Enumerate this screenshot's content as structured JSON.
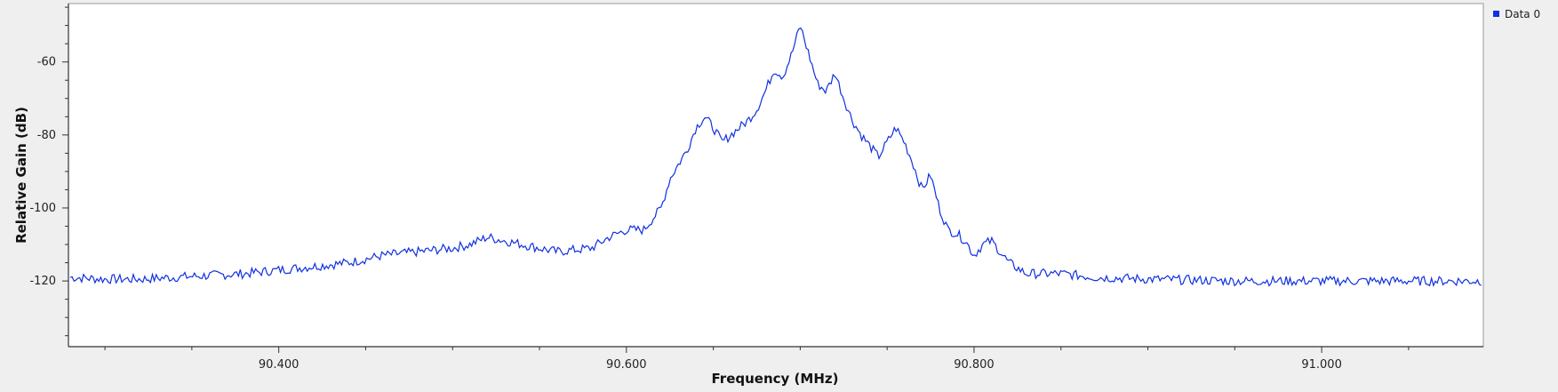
{
  "chart_data": {
    "type": "line",
    "title": "",
    "xlabel": "Frequency (MHz)",
    "ylabel": "Relative Gain (dB)",
    "xlim": [
      90.279,
      91.093
    ],
    "ylim": [
      -138,
      -44
    ],
    "x_ticks": [
      90.4,
      90.6,
      90.8,
      91.0
    ],
    "x_tick_labels": [
      "90.400",
      "90.600",
      "90.800",
      "91.000"
    ],
    "x_minor_step": 0.05,
    "y_ticks": [
      -60,
      -80,
      -100,
      -120
    ],
    "y_tick_labels": [
      "-60",
      "-80",
      "-100",
      "-120"
    ],
    "y_minor_step": 5,
    "grid": false,
    "legend_position": "top-right",
    "series": [
      {
        "name": "Data 0",
        "color": "#1030e0",
        "x": [
          90.28,
          90.3,
          90.32,
          90.34,
          90.36,
          90.38,
          90.4,
          90.42,
          90.44,
          90.46,
          90.48,
          90.5,
          90.51,
          90.52,
          90.54,
          90.56,
          90.58,
          90.59,
          90.6,
          90.61,
          90.62,
          90.625,
          90.63,
          90.635,
          90.64,
          90.645,
          90.65,
          90.655,
          90.66,
          90.665,
          90.67,
          90.675,
          90.68,
          90.685,
          90.69,
          90.695,
          90.7,
          90.705,
          90.71,
          90.715,
          90.72,
          90.725,
          90.73,
          90.735,
          90.74,
          90.745,
          90.75,
          90.755,
          90.76,
          90.765,
          90.77,
          90.775,
          90.78,
          90.785,
          90.79,
          90.795,
          90.8,
          90.805,
          90.81,
          90.815,
          90.82,
          90.83,
          90.85,
          90.87,
          90.9,
          90.95,
          91.0,
          91.05,
          91.092
        ],
        "values": [
          -119,
          -119.5,
          -119.5,
          -119,
          -118.5,
          -118,
          -117,
          -116,
          -115,
          -113,
          -112,
          -111,
          -110,
          -108,
          -110,
          -112,
          -111,
          -108,
          -106,
          -106,
          -100,
          -92,
          -88,
          -84,
          -78,
          -75,
          -78,
          -82,
          -80,
          -78,
          -76,
          -73,
          -68,
          -62,
          -64,
          -58,
          -50,
          -58,
          -66,
          -68,
          -63,
          -70,
          -76,
          -80,
          -83,
          -86,
          -82,
          -78,
          -82,
          -88,
          -95,
          -91,
          -100,
          -106,
          -107,
          -109,
          -113,
          -110,
          -109,
          -112,
          -115,
          -118,
          -118,
          -119,
          -119.5,
          -120,
          -120,
          -120,
          -120
        ]
      }
    ]
  }
}
